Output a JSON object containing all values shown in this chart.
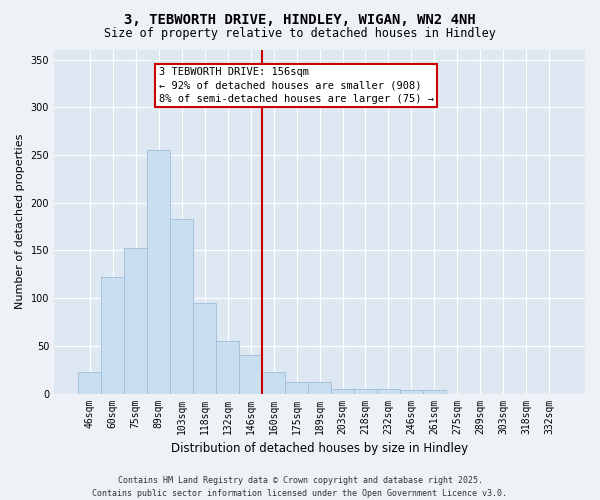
{
  "title": "3, TEBWORTH DRIVE, HINDLEY, WIGAN, WN2 4NH",
  "subtitle": "Size of property relative to detached houses in Hindley",
  "xlabel": "Distribution of detached houses by size in Hindley",
  "ylabel": "Number of detached properties",
  "categories": [
    "46sqm",
    "60sqm",
    "75sqm",
    "89sqm",
    "103sqm",
    "118sqm",
    "132sqm",
    "146sqm",
    "160sqm",
    "175sqm",
    "189sqm",
    "203sqm",
    "218sqm",
    "232sqm",
    "246sqm",
    "261sqm",
    "275sqm",
    "289sqm",
    "303sqm",
    "318sqm",
    "332sqm"
  ],
  "values": [
    23,
    122,
    153,
    255,
    183,
    95,
    55,
    40,
    23,
    12,
    12,
    5,
    5,
    5,
    4,
    4,
    0,
    0,
    0,
    0,
    0
  ],
  "bar_color": "#c8dff0",
  "bar_edge_color": "#a0bcd8",
  "vline_color": "#cc0000",
  "vline_x": 7.5,
  "annotation_text": "3 TEBWORTH DRIVE: 156sqm\n← 92% of detached houses are smaller (908)\n8% of semi-detached houses are larger (75) →",
  "annotation_box_color": "#cc0000",
  "ylim": [
    0,
    360
  ],
  "yticks": [
    0,
    50,
    100,
    150,
    200,
    250,
    300,
    350
  ],
  "footer_line1": "Contains HM Land Registry data © Crown copyright and database right 2025.",
  "footer_line2": "Contains public sector information licensed under the Open Government Licence v3.0.",
  "bg_color": "#eef2f7",
  "plot_bg_color": "#dde8f2",
  "grid_color": "#ffffff",
  "title_fontsize": 10,
  "subtitle_fontsize": 8.5,
  "ylabel_fontsize": 8,
  "xlabel_fontsize": 8.5,
  "tick_fontsize": 7,
  "footer_fontsize": 6,
  "annot_fontsize": 7.5
}
